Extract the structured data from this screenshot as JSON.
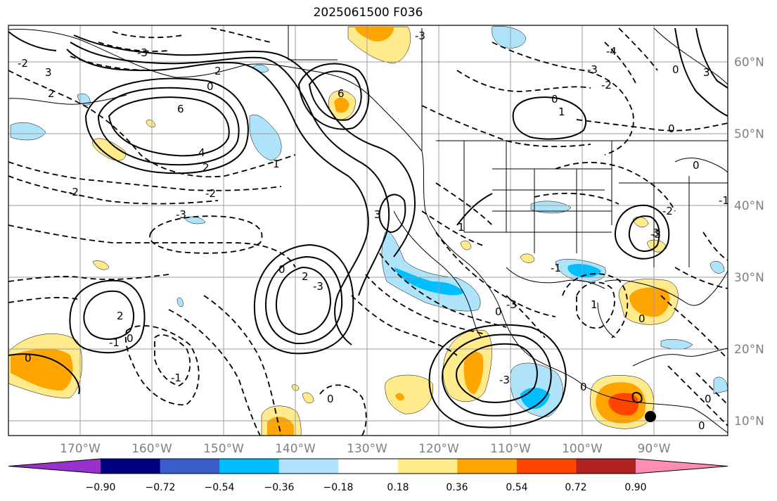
{
  "title": "2025061500 F036",
  "map": {
    "latitude_labels": [
      "60°N",
      "50°N",
      "40°N",
      "30°N",
      "20°N",
      "10°N"
    ],
    "longitude_labels": [
      "170°W",
      "160°W",
      "150°W",
      "140°W",
      "130°W",
      "120°W",
      "110°W",
      "100°W",
      "90°W"
    ],
    "contour_labels": [
      "6",
      "3",
      "2",
      "-3",
      "-2",
      "0",
      "2",
      "6",
      "-3",
      "-4",
      "-3",
      "3",
      "0",
      "-2",
      "0",
      "1",
      "4",
      "2",
      "-2",
      "1",
      "3",
      "0",
      "0",
      "-2",
      "-1",
      "-3",
      "-3",
      "1",
      "3",
      "2",
      "-1",
      "1",
      "0",
      "0",
      "2",
      "-3",
      "-1",
      "-1",
      "0",
      "0",
      "0",
      "-3",
      "0",
      "0",
      "-3",
      "-2",
      "0",
      "0"
    ],
    "colors": {
      "contour": "#000000",
      "grid": "#9e9e9e",
      "coast": "#000000",
      "neg_light": "#aee3fa",
      "neg_med": "#00bfff",
      "pos_light": "#ffeb8c",
      "pos_med": "#ffa500",
      "pos_strong": "#ff4500"
    }
  },
  "colorbar": {
    "tick_labels": [
      "−0.90",
      "−0.72",
      "−0.54",
      "−0.36",
      "−0.18",
      "0.18",
      "0.36",
      "0.54",
      "0.72",
      "0.90"
    ],
    "colors": [
      "#9932cc",
      "#000080",
      "#3a5fcd",
      "#00bfff",
      "#b0e2ff",
      "#ffffff",
      "#ffec8b",
      "#ffa500",
      "#ff4500",
      "#b22222",
      "#ff8cb4"
    ]
  }
}
